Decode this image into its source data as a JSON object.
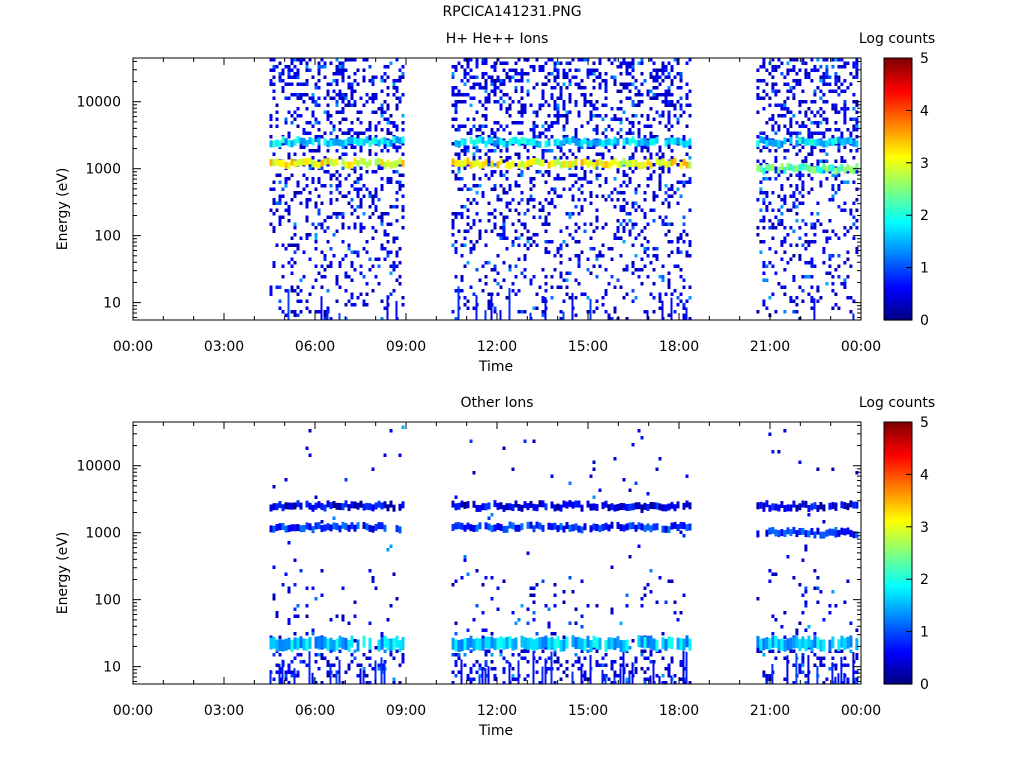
{
  "page": {
    "title": "RPCICA141231.PNG"
  },
  "colors": {
    "colorbar": [
      "#00007f",
      "#0000ff",
      "#007fff",
      "#00ffff",
      "#7fff7f",
      "#ffff00",
      "#ff7f00",
      "#ff0000",
      "#7f0000"
    ]
  },
  "chart_data": [
    {
      "type": "heatmap",
      "title": "H+ He++ Ions",
      "xlabel": "Time",
      "ylabel": "Energy (eV)",
      "y_scale": "log",
      "ylim": [
        5.5,
        45000
      ],
      "xlim_hours": [
        0,
        24
      ],
      "x_tick_labels": [
        "00:00",
        "03:00",
        "06:00",
        "09:00",
        "12:00",
        "15:00",
        "18:00",
        "21:00",
        "00:00"
      ],
      "y_tick_labels": [
        "10",
        "100",
        "1000",
        "10000"
      ],
      "grid": false,
      "colorbar": {
        "label": "Log counts",
        "range": [
          0,
          5
        ],
        "tick_labels": [
          "0",
          "1",
          "2",
          "3",
          "4",
          "5"
        ]
      },
      "data_intervals_hours": [
        [
          4.5,
          8.95
        ],
        [
          10.5,
          18.35
        ],
        [
          20.55,
          23.9
        ]
      ],
      "bands": [
        {
          "energy_ev": 1200,
          "log_counts": 3.1,
          "intervals_hours": [
            [
              4.5,
              8.95
            ],
            [
              10.5,
              18.35
            ]
          ]
        },
        {
          "energy_ev": 1000,
          "log_counts": 2.4,
          "intervals_hours": [
            [
              20.55,
              23.9
            ]
          ]
        },
        {
          "energy_ev": 2500,
          "log_counts": 1.7,
          "intervals_hours": [
            [
              4.5,
              8.95
            ],
            [
              10.5,
              18.35
            ],
            [
              20.55,
              23.9
            ]
          ]
        }
      ]
    },
    {
      "type": "heatmap",
      "title": "Other Ions",
      "xlabel": "Time",
      "ylabel": "Energy (eV)",
      "y_scale": "log",
      "ylim": [
        5.5,
        45000
      ],
      "xlim_hours": [
        0,
        24
      ],
      "x_tick_labels": [
        "00:00",
        "03:00",
        "06:00",
        "09:00",
        "12:00",
        "15:00",
        "18:00",
        "21:00",
        "00:00"
      ],
      "y_tick_labels": [
        "10",
        "100",
        "1000",
        "10000"
      ],
      "grid": false,
      "colorbar": {
        "label": "Log counts",
        "range": [
          0,
          5
        ],
        "tick_labels": [
          "0",
          "1",
          "2",
          "3",
          "4",
          "5"
        ]
      },
      "data_intervals_hours": [
        [
          4.5,
          8.95
        ],
        [
          10.5,
          18.35
        ],
        [
          20.55,
          23.9
        ]
      ],
      "bands": [
        {
          "energy_ev": 1200,
          "log_counts": 0.8,
          "intervals_hours": [
            [
              4.5,
              8.95
            ],
            [
              10.5,
              18.35
            ]
          ]
        },
        {
          "energy_ev": 1000,
          "log_counts": 0.8,
          "intervals_hours": [
            [
              20.55,
              23.9
            ]
          ]
        },
        {
          "energy_ev": 2500,
          "log_counts": 0.5,
          "intervals_hours": [
            [
              4.5,
              8.95
            ],
            [
              10.5,
              18.35
            ],
            [
              20.55,
              23.9
            ]
          ]
        },
        {
          "energy_ev": 22,
          "log_counts": 1.6,
          "intervals_hours": [
            [
              4.5,
              8.95
            ],
            [
              10.5,
              18.35
            ],
            [
              20.55,
              23.9
            ]
          ]
        }
      ]
    }
  ]
}
